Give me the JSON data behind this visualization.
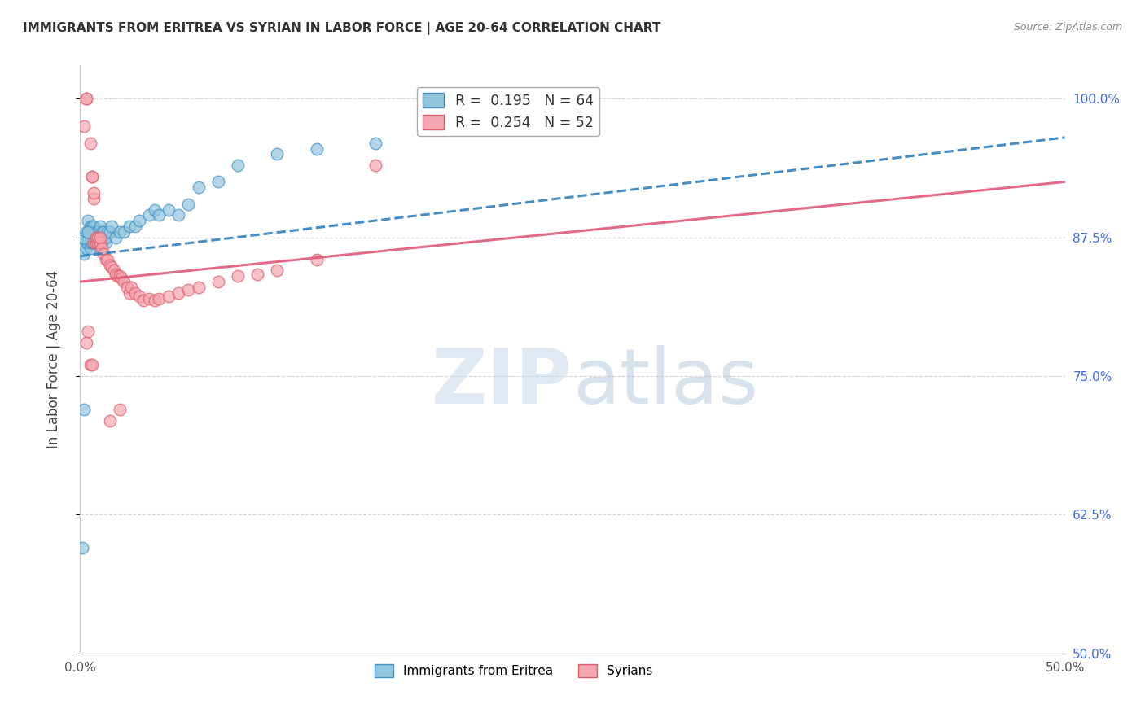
{
  "title": "IMMIGRANTS FROM ERITREA VS SYRIAN IN LABOR FORCE | AGE 20-64 CORRELATION CHART",
  "source": "Source: ZipAtlas.com",
  "ylabel": "In Labor Force | Age 20-64",
  "xlim": [
    0.0,
    0.5
  ],
  "ylim": [
    0.5,
    1.03
  ],
  "yticks": [
    0.5,
    0.625,
    0.75,
    0.875,
    1.0
  ],
  "ytick_labels": [
    "50.0%",
    "62.5%",
    "75.0%",
    "87.5%",
    "100.0%"
  ],
  "xticks": [
    0.0,
    0.05,
    0.1,
    0.15,
    0.2,
    0.25,
    0.3,
    0.35,
    0.4,
    0.45,
    0.5
  ],
  "xtick_labels": [
    "0.0%",
    "",
    "",
    "",
    "",
    "",
    "",
    "",
    "",
    "",
    "50.0%"
  ],
  "eritrea_color": "#92c5de",
  "syrian_color": "#f4a6b0",
  "eritrea_edge": "#4292c6",
  "syrian_edge": "#e05a6a",
  "trend_eritrea_color": "#3182bd",
  "trend_syrian_color": "#e05a7a",
  "R_eritrea": 0.195,
  "N_eritrea": 64,
  "R_syrian": 0.254,
  "N_syrian": 52,
  "eritrea_x": [
    0.001,
    0.002,
    0.002,
    0.003,
    0.003,
    0.003,
    0.004,
    0.004,
    0.004,
    0.004,
    0.005,
    0.005,
    0.005,
    0.005,
    0.005,
    0.006,
    0.006,
    0.006,
    0.006,
    0.007,
    0.007,
    0.007,
    0.007,
    0.008,
    0.008,
    0.008,
    0.009,
    0.009,
    0.009,
    0.01,
    0.01,
    0.01,
    0.01,
    0.011,
    0.011,
    0.012,
    0.012,
    0.013,
    0.013,
    0.014,
    0.015,
    0.016,
    0.018,
    0.02,
    0.022,
    0.025,
    0.028,
    0.03,
    0.035,
    0.038,
    0.04,
    0.045,
    0.05,
    0.055,
    0.06,
    0.07,
    0.08,
    0.1,
    0.12,
    0.15,
    0.001,
    0.002,
    0.003,
    0.004
  ],
  "eritrea_y": [
    0.595,
    0.72,
    0.86,
    0.865,
    0.87,
    0.875,
    0.87,
    0.875,
    0.88,
    0.89,
    0.865,
    0.87,
    0.875,
    0.88,
    0.885,
    0.87,
    0.875,
    0.88,
    0.885,
    0.87,
    0.875,
    0.88,
    0.885,
    0.87,
    0.875,
    0.88,
    0.87,
    0.875,
    0.88,
    0.865,
    0.87,
    0.875,
    0.885,
    0.87,
    0.88,
    0.875,
    0.88,
    0.87,
    0.875,
    0.88,
    0.88,
    0.885,
    0.875,
    0.88,
    0.88,
    0.885,
    0.885,
    0.89,
    0.895,
    0.9,
    0.895,
    0.9,
    0.895,
    0.905,
    0.92,
    0.925,
    0.94,
    0.95,
    0.955,
    0.96,
    0.875,
    0.875,
    0.88,
    0.88
  ],
  "syrian_x": [
    0.002,
    0.003,
    0.003,
    0.005,
    0.006,
    0.006,
    0.007,
    0.007,
    0.007,
    0.008,
    0.008,
    0.009,
    0.009,
    0.01,
    0.01,
    0.011,
    0.012,
    0.013,
    0.014,
    0.015,
    0.016,
    0.017,
    0.018,
    0.019,
    0.02,
    0.021,
    0.022,
    0.024,
    0.025,
    0.026,
    0.028,
    0.03,
    0.032,
    0.035,
    0.038,
    0.04,
    0.045,
    0.05,
    0.055,
    0.06,
    0.07,
    0.08,
    0.09,
    0.1,
    0.12,
    0.15,
    0.003,
    0.004,
    0.005,
    0.006,
    0.015,
    0.02
  ],
  "syrian_y": [
    0.975,
    1.0,
    1.0,
    0.96,
    0.93,
    0.93,
    0.91,
    0.915,
    0.87,
    0.87,
    0.875,
    0.87,
    0.875,
    0.87,
    0.875,
    0.865,
    0.86,
    0.855,
    0.855,
    0.85,
    0.848,
    0.845,
    0.842,
    0.84,
    0.84,
    0.838,
    0.835,
    0.83,
    0.825,
    0.83,
    0.825,
    0.822,
    0.818,
    0.82,
    0.818,
    0.82,
    0.822,
    0.825,
    0.828,
    0.83,
    0.835,
    0.84,
    0.842,
    0.845,
    0.855,
    0.94,
    0.78,
    0.79,
    0.76,
    0.76,
    0.71,
    0.72
  ],
  "eritrea_trend_x0": 0.0,
  "eritrea_trend_y0": 0.858,
  "eritrea_trend_x1": 0.5,
  "eritrea_trend_y1": 0.965,
  "syrian_trend_x0": 0.0,
  "syrian_trend_y0": 0.835,
  "syrian_trend_x1": 0.5,
  "syrian_trend_y1": 0.925,
  "watermark_zip_color": "#c8d8e8",
  "watermark_atlas_color": "#a8c0d8",
  "background_color": "#ffffff",
  "grid_color": "#cccccc"
}
